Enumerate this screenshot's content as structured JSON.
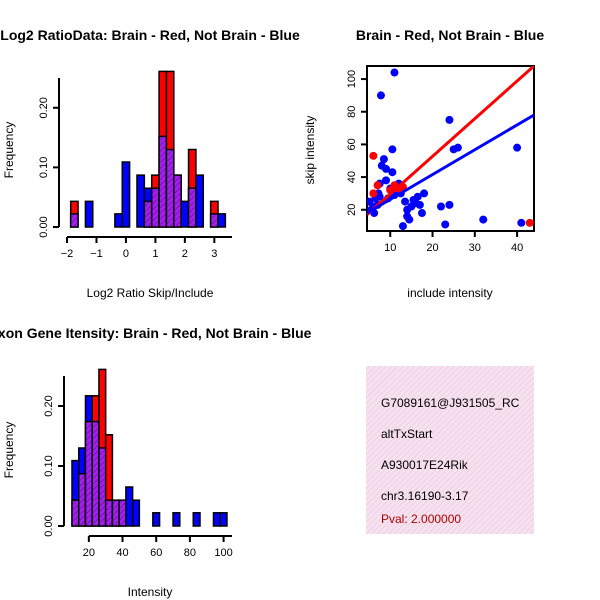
{
  "colors": {
    "red": "#ff0000",
    "blue": "#0000ff",
    "overlap": "#a020f0",
    "info_bg": "#f3d8ea",
    "pval": "#b00000"
  },
  "chart_data": [
    {
      "id": "ratio",
      "type": "bar",
      "title": "Log2 RatioData: Brain - Red, Not Brain - Blue",
      "xlabel": "Log2 Ratio Skip/Include",
      "ylabel": "Frequency",
      "xlim": [
        -2,
        3.6
      ],
      "ylim": [
        0,
        0.26
      ],
      "xticks": [
        -2,
        -1,
        0,
        1,
        2,
        3
      ],
      "yticks": [
        0.0,
        0.1,
        0.2
      ],
      "ytick_labels": [
        "0.00",
        "0.10",
        "0.20"
      ],
      "bin_width": 0.25,
      "bins": [
        {
          "x0": -1.875,
          "red": 0.043,
          "blue": 0.022
        },
        {
          "x0": -1.375,
          "red": 0.0,
          "blue": 0.043
        },
        {
          "x0": -0.375,
          "red": 0.0,
          "blue": 0.022
        },
        {
          "x0": -0.125,
          "red": 0.0,
          "blue": 0.109
        },
        {
          "x0": 0.375,
          "red": 0.0,
          "blue": 0.087
        },
        {
          "x0": 0.625,
          "red": 0.043,
          "blue": 0.065
        },
        {
          "x0": 0.875,
          "red": 0.087,
          "blue": 0.065
        },
        {
          "x0": 1.125,
          "red": 0.261,
          "blue": 0.152
        },
        {
          "x0": 1.375,
          "red": 0.261,
          "blue": 0.13
        },
        {
          "x0": 1.625,
          "red": 0.087,
          "blue": 0.087
        },
        {
          "x0": 1.875,
          "red": 0.0,
          "blue": 0.043
        },
        {
          "x0": 2.125,
          "red": 0.13,
          "blue": 0.065
        },
        {
          "x0": 2.375,
          "red": 0.0,
          "blue": 0.087
        },
        {
          "x0": 2.875,
          "red": 0.043,
          "blue": 0.022
        },
        {
          "x0": 3.125,
          "red": 0.0,
          "blue": 0.022
        }
      ]
    },
    {
      "id": "scatter",
      "type": "scatter",
      "title": "Brain - Red, Not Brain - Blue",
      "xlabel": "include intensity",
      "ylabel": "skip intensity",
      "xlim": [
        4.5,
        44
      ],
      "ylim": [
        7,
        108
      ],
      "xticks": [
        10,
        20,
        30,
        40
      ],
      "yticks": [
        20,
        40,
        60,
        80,
        100
      ],
      "series": [
        {
          "name": "Not Brain",
          "color": "blue",
          "points": [
            [
              5,
              25
            ],
            [
              5.5,
              20
            ],
            [
              6,
              22
            ],
            [
              6.2,
              18
            ],
            [
              6.5,
              27
            ],
            [
              7,
              23
            ],
            [
              7.2,
              30
            ],
            [
              7.5,
              36
            ],
            [
              7.5,
              28
            ],
            [
              7.8,
              90
            ],
            [
              8,
              47
            ],
            [
              8.5,
              51
            ],
            [
              9,
              45
            ],
            [
              9,
              38
            ],
            [
              9.5,
              27
            ],
            [
              10,
              33
            ],
            [
              10.5,
              57
            ],
            [
              10.5,
              43
            ],
            [
              11,
              104
            ],
            [
              11,
              29
            ],
            [
              11.5,
              31
            ],
            [
              12,
              36
            ],
            [
              12.5,
              30
            ],
            [
              13,
              10
            ],
            [
              13.5,
              25
            ],
            [
              14,
              20
            ],
            [
              14,
              16
            ],
            [
              14.5,
              14
            ],
            [
              15,
              22
            ],
            [
              15.5,
              26
            ],
            [
              16,
              24
            ],
            [
              16.5,
              28
            ],
            [
              17,
              23
            ],
            [
              17.5,
              18
            ],
            [
              18,
              30
            ],
            [
              22,
              22
            ],
            [
              23,
              11
            ],
            [
              24,
              75
            ],
            [
              24,
              23
            ],
            [
              25,
              57
            ],
            [
              26,
              58
            ],
            [
              32,
              14
            ],
            [
              40,
              58
            ],
            [
              41,
              12
            ]
          ]
        },
        {
          "name": "Brain",
          "color": "red",
          "points": [
            [
              6,
              53
            ],
            [
              6,
              30
            ],
            [
              7,
              35
            ],
            [
              10,
              32
            ],
            [
              11,
              35
            ],
            [
              12,
              33
            ],
            [
              13,
              34
            ],
            [
              43,
              12
            ]
          ]
        }
      ],
      "fit_lines": [
        {
          "color": "red",
          "x": [
            4.5,
            44
          ],
          "y": [
            17,
            108
          ]
        },
        {
          "color": "blue",
          "x": [
            4.5,
            44
          ],
          "y": [
            18,
            78
          ]
        }
      ]
    },
    {
      "id": "intensity",
      "type": "bar",
      "title": "Exon Gene Itensity: Brain - Red, Not Brain - Blue",
      "xlabel": "Intensity",
      "ylabel": "Frequency",
      "xlim": [
        10,
        105
      ],
      "ylim": [
        0,
        0.26
      ],
      "xticks": [
        20,
        40,
        60,
        80,
        100
      ],
      "yticks": [
        0.0,
        0.1,
        0.2
      ],
      "ytick_labels": [
        "0.00",
        "0.10",
        "0.20"
      ],
      "bin_width": 4,
      "bins": [
        {
          "x0": 10,
          "red": 0.043,
          "blue": 0.109
        },
        {
          "x0": 14,
          "red": 0.087,
          "blue": 0.13
        },
        {
          "x0": 18,
          "red": 0.174,
          "blue": 0.217
        },
        {
          "x0": 22,
          "red": 0.217,
          "blue": 0.174
        },
        {
          "x0": 26,
          "red": 0.261,
          "blue": 0.13
        },
        {
          "x0": 30,
          "red": 0.152,
          "blue": 0.043
        },
        {
          "x0": 34,
          "red": 0.043,
          "blue": 0.043
        },
        {
          "x0": 38,
          "red": 0.043,
          "blue": 0.043
        },
        {
          "x0": 42,
          "red": 0.0,
          "blue": 0.065
        },
        {
          "x0": 46,
          "red": 0.0,
          "blue": 0.043
        },
        {
          "x0": 58,
          "red": 0.0,
          "blue": 0.022
        },
        {
          "x0": 70,
          "red": 0.0,
          "blue": 0.022
        },
        {
          "x0": 82,
          "red": 0.0,
          "blue": 0.022
        },
        {
          "x0": 94,
          "red": 0.0,
          "blue": 0.022
        },
        {
          "x0": 98,
          "red": 0.0,
          "blue": 0.022
        }
      ]
    }
  ],
  "info": {
    "probe_id": "G7089161@J931505_RC",
    "event_type": "altTxStart",
    "gene": "A930017E24Rik",
    "location": "chr3.16190-3.17",
    "pval": "Pval: 2.000000"
  }
}
